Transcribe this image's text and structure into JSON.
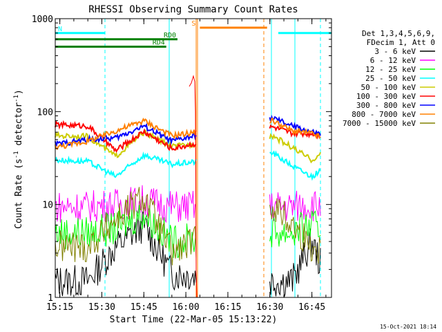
{
  "chart_data": {
    "type": "line",
    "title": "RHESSI Observing Summary Count Rates",
    "xlabel": "Start Time (22-Mar-05 15:13:22)",
    "ylabel_main": "Count Rate (s",
    "ylabel_sup1": "-1",
    "ylabel_mid": " detector",
    "ylabel_sup2": "-1",
    "ylabel_end": ")",
    "footer": "15-Oct-2021 18:14",
    "y_scale": "log",
    "ylim": [
      1,
      1000
    ],
    "xlim": [
      "15:13:22",
      "16:52"
    ],
    "x_ticks": [
      "15:15",
      "15:30",
      "15:45",
      "16:00",
      "16:15",
      "16:30",
      "16:45"
    ],
    "y_ticks": [
      "1",
      "10",
      "100",
      "1000"
    ],
    "legend_header": [
      "Det 1,3,4,5,6,9,",
      "FDecim 1, Att 0"
    ],
    "legend_position": "right",
    "series": [
      {
        "name": "3 - 6 keV",
        "color": "#000000",
        "values": [
          1.5,
          1.5,
          3.5,
          6,
          1.8,
          1.5,
          1.5,
          4,
          1.6
        ]
      },
      {
        "name": "6 - 12 keV",
        "color": "#ff00ff",
        "values": [
          9.5,
          9.5,
          10,
          11,
          9.5,
          9.5,
          9.5,
          10,
          9.5
        ]
      },
      {
        "name": "12 - 25 keV",
        "color": "#00ff00",
        "values": [
          5,
          5,
          5.5,
          8,
          4,
          5,
          5,
          6,
          4.5
        ]
      },
      {
        "name": "25 - 50 keV",
        "color": "#00ffff",
        "values": [
          30,
          29,
          20,
          34,
          27,
          36,
          26,
          20,
          25
        ]
      },
      {
        "name": "50 - 100 keV",
        "color": "#cccc00",
        "values": [
          55,
          54,
          33,
          60,
          42,
          55,
          41,
          30,
          38
        ]
      },
      {
        "name": "100 - 300 keV",
        "color": "#ff0000",
        "values": [
          72,
          70,
          38,
          61,
          40,
          68,
          58,
          58,
          55
        ]
      },
      {
        "name": "300 - 800 keV",
        "color": "#0000ff",
        "values": [
          45,
          50,
          52,
          70,
          48,
          85,
          70,
          60,
          55
        ]
      },
      {
        "name": "800 - 7000 keV",
        "color": "#ff8000",
        "values": [
          42,
          48,
          62,
          80,
          55,
          80,
          62,
          58,
          50
        ]
      },
      {
        "name": "7000 - 15000 keV",
        "color": "#808000",
        "values": [
          3.5,
          3.5,
          7,
          12,
          3,
          10,
          6,
          3.5,
          3
        ]
      }
    ],
    "x": [
      "15:15",
      "15:25",
      "15:35",
      "15:45",
      "15:55",
      "16:31",
      "16:38",
      "16:45",
      "16:50"
    ],
    "flags": [
      {
        "label": "N",
        "color": "#00ffff",
        "start": "15:13:22",
        "end": "15:31",
        "level": 700
      },
      {
        "label": "",
        "color": "#00ffff",
        "start": "16:33",
        "end": "16:52",
        "level": 700
      },
      {
        "label": "S",
        "color": "#ff8000",
        "start": "16:05",
        "end": "16:29",
        "level": 800
      },
      {
        "label": "RD0",
        "color": "#008000",
        "start": "15:13:22",
        "end": "15:57",
        "level": 600
      },
      {
        "label": "RD4",
        "color": "#008000",
        "start": "15:13:22",
        "end": "15:53",
        "level": 500
      }
    ]
  }
}
